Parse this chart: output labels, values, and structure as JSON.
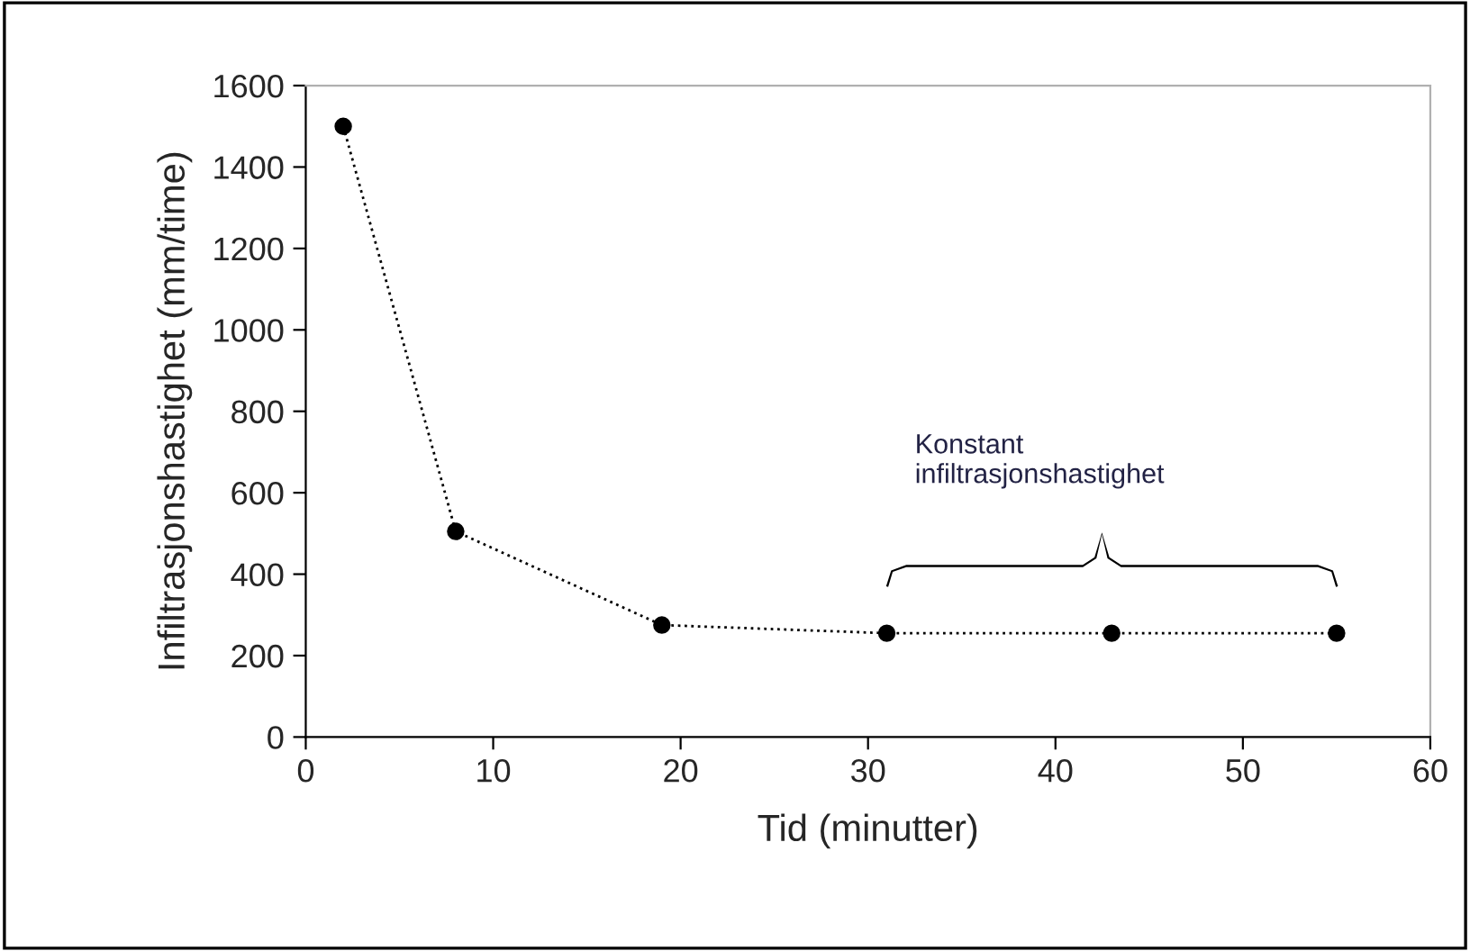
{
  "chart_data": {
    "type": "line",
    "xlabel": "Tid (minutter)",
    "ylabel": "Infiltrasjonshastighet (mm/time)",
    "x": [
      2,
      8,
      19,
      31,
      43,
      55
    ],
    "series": [
      {
        "color": "#000000",
        "values": [
          1500,
          505,
          275,
          255,
          255,
          255
        ]
      }
    ],
    "marker": "circle",
    "line_style": "dotted",
    "xlim": [
      0,
      60
    ],
    "xticks": [
      0,
      10,
      20,
      30,
      40,
      50,
      60
    ],
    "ylim": [
      0,
      1600
    ],
    "yticks": [
      0,
      200,
      400,
      600,
      800,
      1000,
      1200,
      1400,
      1600
    ],
    "grid": false,
    "legend": false,
    "annotations": [
      "Konstant\ninfiltrasjonshastighet"
    ]
  }
}
